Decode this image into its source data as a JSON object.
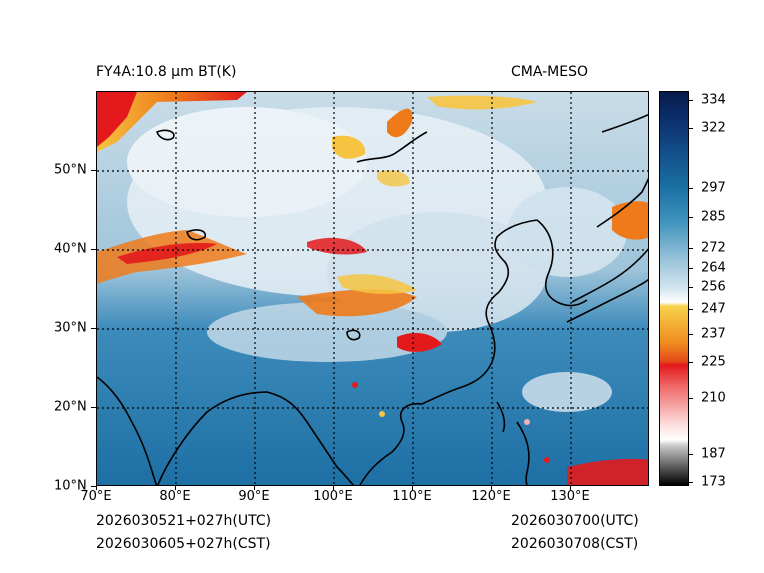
{
  "header": {
    "title_left": "FY4A:10.8 µm BT(K)",
    "title_right": "CMA-MESO"
  },
  "footer": {
    "left_line1": "2026030521+027h(UTC)",
    "left_line2": "2026030605+027h(CST)",
    "right_line1": "2026030700(UTC)",
    "right_line2": "2026030708(CST)"
  },
  "map": {
    "lon_range": [
      70,
      140
    ],
    "lat_range": [
      10,
      60
    ],
    "lon_labels": [
      "70°E",
      "80°E",
      "90°E",
      "100°E",
      "110°E",
      "120°E",
      "130°E"
    ],
    "lon_values": [
      70,
      80,
      90,
      100,
      110,
      120,
      130
    ],
    "lat_labels": [
      "10°N",
      "20°N",
      "30°N",
      "40°N",
      "50°N"
    ],
    "lat_values": [
      10,
      20,
      30,
      40,
      50
    ]
  },
  "colorbar": {
    "labels": [
      "334",
      "322",
      "297",
      "285",
      "272",
      "264",
      "256",
      "247",
      "237",
      "225",
      "210",
      "187",
      "173"
    ],
    "values": [
      334,
      322,
      297,
      285,
      272,
      264,
      256,
      247,
      237,
      225,
      210,
      187,
      173
    ],
    "colors": {
      "darkest_warm": "#071a4a",
      "ocean_blue": "#1a6fa3",
      "light_blue": "#bcd6e6",
      "white": "#ffffff",
      "yellow": "#f5c33a",
      "orange": "#ee7a1a",
      "red": "#e3191c",
      "pink": "#f6b0b0",
      "gray": "#8a8a8a",
      "black": "#000000"
    }
  }
}
